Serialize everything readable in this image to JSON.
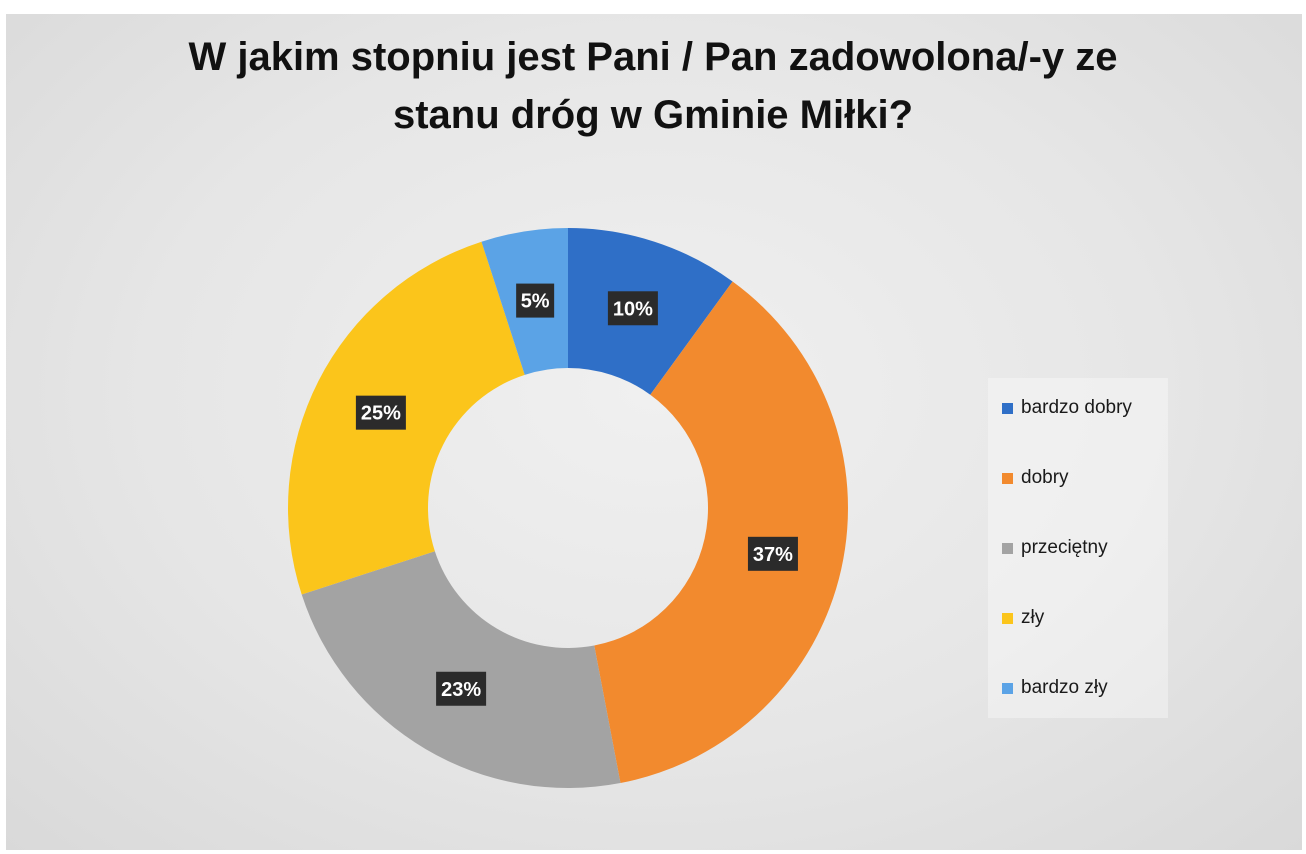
{
  "chart_data": {
    "type": "pie",
    "donut": true,
    "title": [
      "W jakim stopniu jest Pani / Pan zadowolona/-y ze",
      "stanu dróg w Gminie Miłki?"
    ],
    "categories": [
      "bardzo dobry",
      "dobry",
      "przeciętny",
      "zły",
      "bardzo zły"
    ],
    "values": [
      10,
      37,
      23,
      25,
      5
    ],
    "labels": [
      "10%",
      "37%",
      "23%",
      "25%",
      "5%"
    ],
    "colors": [
      "#2f6fc7",
      "#f28a2e",
      "#a3a3a3",
      "#fbc51b",
      "#5ba3e6"
    ],
    "legend_position": "right"
  }
}
